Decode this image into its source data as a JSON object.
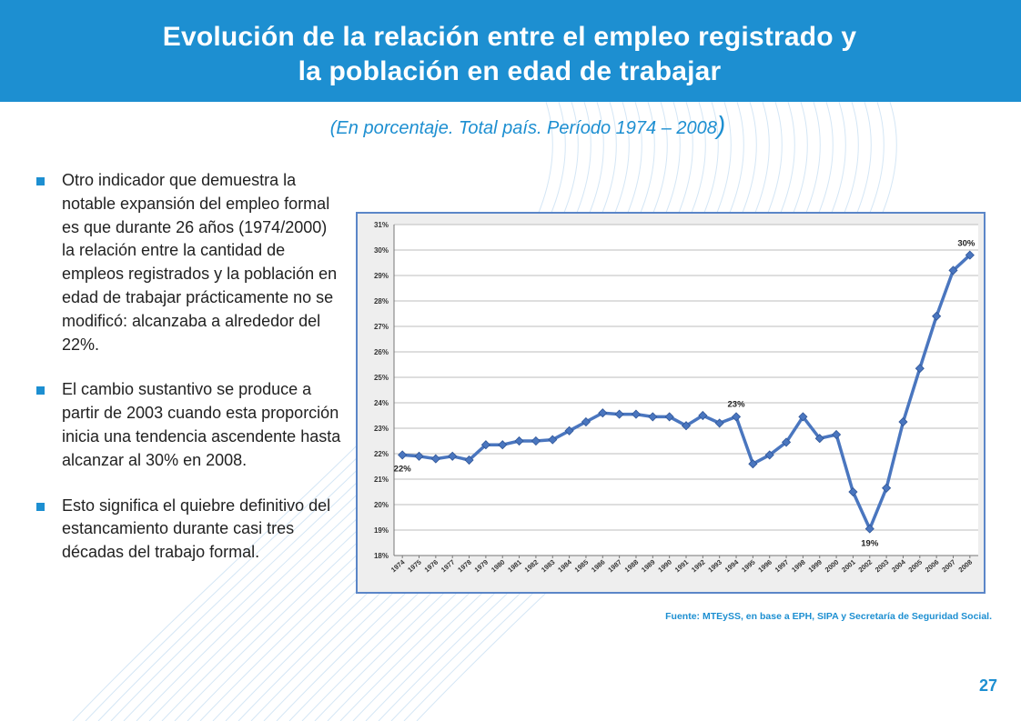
{
  "slide": {
    "title_line1": "Evolución de la relación entre el empleo registrado y",
    "title_line2": "la población en edad de trabajar",
    "subtitle": "(En porcentaje. Total país. Período 1974 – 2008",
    "subtitle_paren": ")",
    "page_number": "27",
    "source": "Fuente: MTEySS, en base a EPH, SIPA y Secretaría de Seguridad Social.",
    "accent_color": "#1d8fd1",
    "bullets": [
      "Otro indicador que demuestra la notable expansión del empleo formal es que durante 26 años (1974/2000) la relación entre la cantidad de empleos registrados y la población en edad de trabajar prácticamente no se modificó: alcanzaba a alrededor del 22%.",
      "El cambio sustantivo se produce a partir de 2003 cuando esta proporción inicia una tendencia ascendente hasta alcanzar al 30% en 2008.",
      "Esto significa el quiebre definitivo del estancamiento durante casi tres décadas del trabajo formal."
    ]
  },
  "chart_data": {
    "type": "line",
    "title": "",
    "xlabel": "",
    "ylabel": "",
    "ylim": [
      18,
      31
    ],
    "yticks": [
      "18%",
      "19%",
      "20%",
      "21%",
      "22%",
      "23%",
      "24%",
      "25%",
      "26%",
      "27%",
      "28%",
      "29%",
      "30%",
      "31%"
    ],
    "x": [
      "1974",
      "1975",
      "1976",
      "1977",
      "1978",
      "1979",
      "1980",
      "1981",
      "1982",
      "1983",
      "1984",
      "1985",
      "1986",
      "1987",
      "1988",
      "1989",
      "1990",
      "1991",
      "1992",
      "1993",
      "1994",
      "1995",
      "1996",
      "1997",
      "1998",
      "1999",
      "2000",
      "2001",
      "2002",
      "2003",
      "2004",
      "2005",
      "2006",
      "2007",
      "2008"
    ],
    "series": [
      {
        "color": "#4a76bf",
        "values": [
          21.95,
          21.9,
          21.8,
          21.9,
          21.75,
          22.35,
          22.35,
          22.5,
          22.5,
          22.55,
          22.9,
          23.25,
          23.6,
          23.55,
          23.55,
          23.45,
          23.45,
          23.1,
          23.5,
          23.2,
          23.45,
          21.6,
          21.95,
          22.45,
          23.45,
          22.6,
          22.75,
          20.5,
          19.05,
          20.65,
          23.25,
          25.35,
          27.4,
          29.2,
          29.8
        ]
      }
    ],
    "annotations": [
      {
        "x": "1974",
        "text": "22%"
      },
      {
        "x": "1994",
        "text": "23%"
      },
      {
        "x": "2002",
        "text": "19%"
      },
      {
        "x": "2008",
        "text": "30%"
      }
    ],
    "grid": true,
    "legend": "none"
  }
}
